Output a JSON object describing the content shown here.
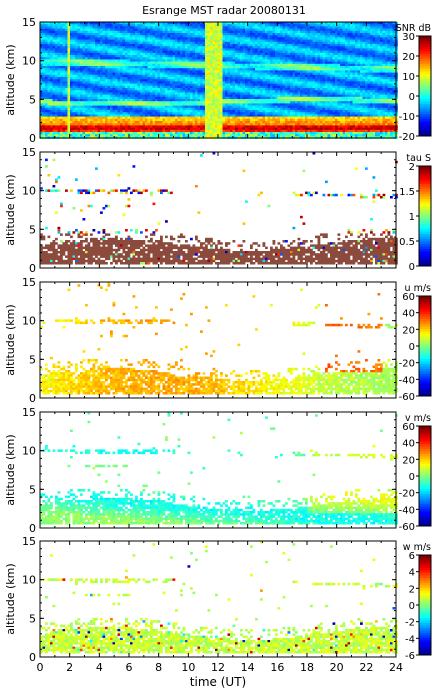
{
  "title": "Esrange MST radar 20080131",
  "colors": {
    "jet": [
      "#00008f",
      "#0000ff",
      "#007fff",
      "#00ffff",
      "#7fff7f",
      "#ffff00",
      "#ff7f00",
      "#ff0000",
      "#7f0000"
    ],
    "tau_brown": "#8b4a3c",
    "sky": "#8fb8e8"
  },
  "chart_data": [
    {
      "type": "heatmap",
      "title": "Esrange MST radar 20080131",
      "xlabel": "",
      "ylabel": "altitude (km)",
      "xlim": [
        0,
        24
      ],
      "ylim": [
        0,
        15
      ],
      "y_ticks": [
        "0",
        "5",
        "10",
        "15"
      ],
      "colorbar": {
        "label": "SNR dB",
        "range": [
          -20,
          30
        ],
        "ticks": [
          "30",
          "20",
          "10",
          "0",
          "-10",
          "-20"
        ]
      },
      "mode": "snr"
    },
    {
      "type": "heatmap",
      "xlabel": "",
      "ylabel": "altitude (km)",
      "xlim": [
        0,
        24
      ],
      "ylim": [
        0,
        15
      ],
      "y_ticks": [
        "0",
        "5",
        "10",
        "15"
      ],
      "colorbar": {
        "label": "tau S",
        "range": [
          0,
          2
        ],
        "ticks": [
          "2",
          "1.5",
          "1",
          "0.5",
          "0"
        ]
      },
      "mode": "tau"
    },
    {
      "type": "heatmap",
      "xlabel": "",
      "ylabel": "altitude (km)",
      "xlim": [
        0,
        24
      ],
      "ylim": [
        0,
        15
      ],
      "y_ticks": [
        "0",
        "5",
        "10",
        "15"
      ],
      "colorbar": {
        "label": "u m/s",
        "range": [
          -60,
          60
        ],
        "ticks": [
          "60",
          "40",
          "20",
          "0",
          "-20",
          "-40",
          "-60"
        ]
      },
      "mode": "u"
    },
    {
      "type": "heatmap",
      "xlabel": "",
      "ylabel": "altitude (km)",
      "xlim": [
        0,
        24
      ],
      "ylim": [
        0,
        15
      ],
      "y_ticks": [
        "0",
        "5",
        "10",
        "15"
      ],
      "colorbar": {
        "label": "v m/s",
        "range": [
          -60,
          60
        ],
        "ticks": [
          "60",
          "40",
          "20",
          "0",
          "-20",
          "-40",
          "-60"
        ]
      },
      "mode": "v"
    },
    {
      "type": "heatmap",
      "xlabel": "time (UT)",
      "ylabel": "altitude (km)",
      "xlim": [
        0,
        24
      ],
      "ylim": [
        0,
        15
      ],
      "x_ticks": [
        "0",
        "2",
        "4",
        "6",
        "8",
        "10",
        "12",
        "14",
        "16",
        "18",
        "20",
        "22",
        "24"
      ],
      "y_ticks": [
        "0",
        "5",
        "10",
        "15"
      ],
      "colorbar": {
        "label": "w m/s",
        "range": [
          -6,
          6
        ],
        "ticks": [
          "6",
          "4",
          "2",
          "0",
          "-2",
          "-4",
          "-6"
        ]
      },
      "mode": "w"
    }
  ]
}
